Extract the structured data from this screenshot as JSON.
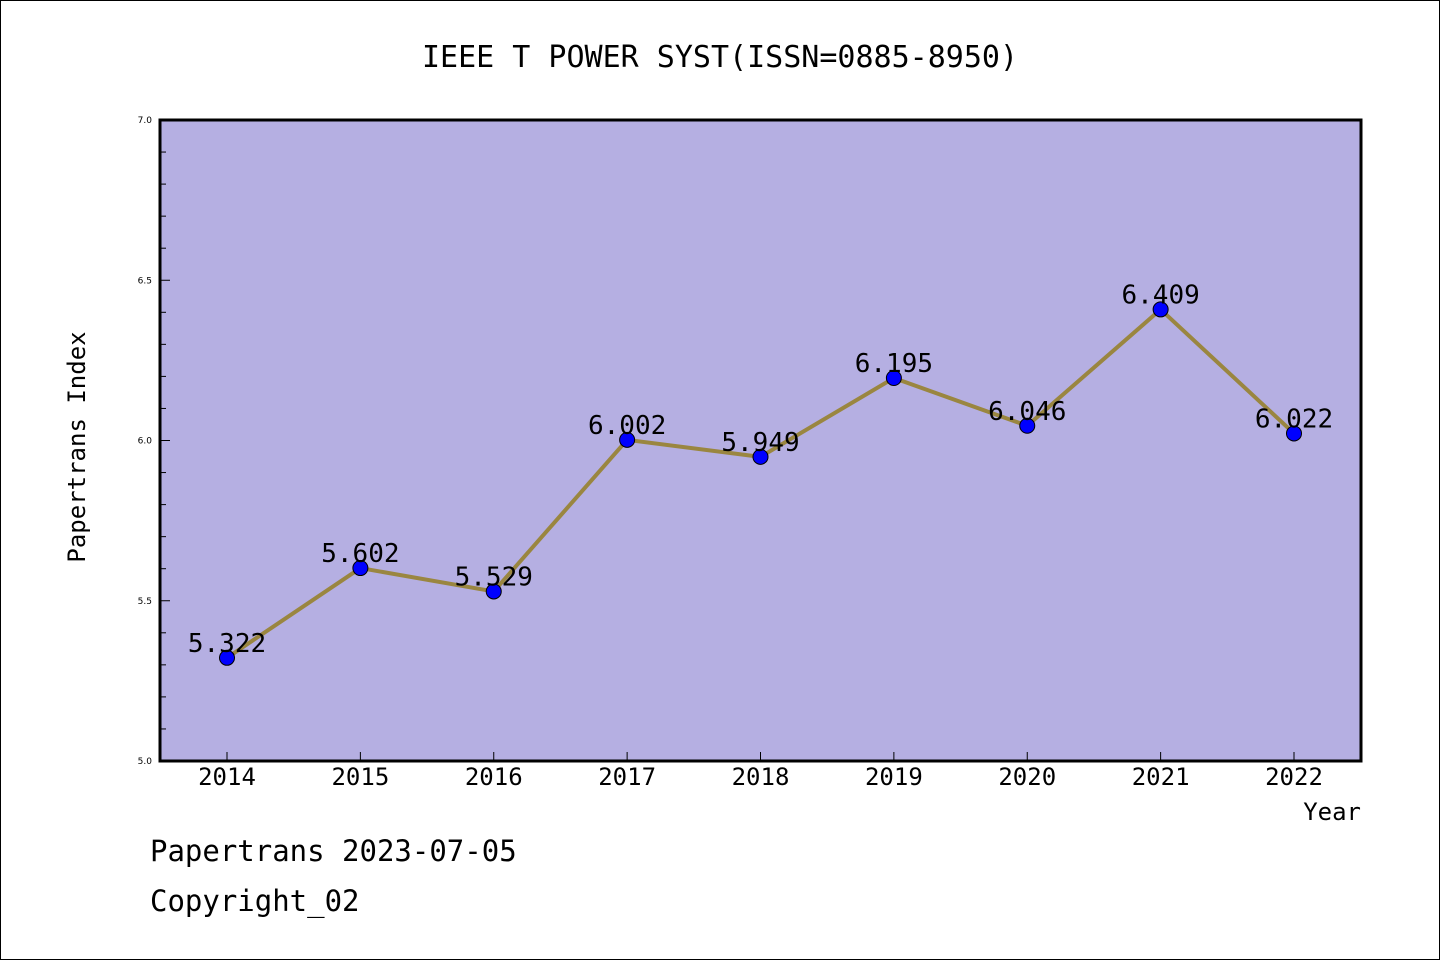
{
  "chart_data": {
    "type": "line",
    "title": "IEEE T POWER SYST(ISSN=0885-8950)",
    "xlabel": "Year",
    "ylabel": "Papertrans Index",
    "categories": [
      "2014",
      "2015",
      "2016",
      "2017",
      "2018",
      "2019",
      "2020",
      "2021",
      "2022"
    ],
    "series": [
      {
        "values": [
          5.322,
          5.602,
          5.529,
          6.002,
          5.949,
          6.195,
          6.046,
          6.409,
          6.022
        ]
      }
    ],
    "data_labels": [
      "5.322",
      "5.602",
      "5.529",
      "6.002",
      "5.949",
      "6.195",
      "6.046",
      "6.409",
      "6.022"
    ],
    "ylim": [
      5.0,
      7.0
    ],
    "y_ticks": [
      "5.0",
      "5.5",
      "6.0",
      "6.5",
      "7.0"
    ],
    "y_tick_values": [
      5.0,
      5.5,
      6.0,
      6.5,
      7.0
    ],
    "y_minor_step": 0.1,
    "grid": false,
    "colors": {
      "plot_background": "#b5afe2",
      "line": "#9a8640",
      "marker": "#0000ff"
    }
  },
  "footer": {
    "line1": "Papertrans 2023-07-05",
    "line2": "Copyright_02"
  }
}
